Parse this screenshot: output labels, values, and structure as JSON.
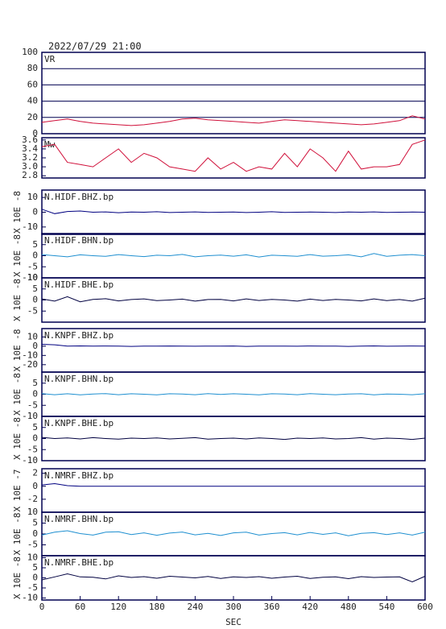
{
  "title": "2022/07/29 21:00",
  "chart_data": [
    {
      "type": "line",
      "title": "VR",
      "grid": true,
      "xlim": [
        0,
        600
      ],
      "ylim": [
        0,
        100
      ],
      "yticks": [
        0,
        20,
        40,
        60,
        80,
        100
      ],
      "x": [
        0,
        20,
        40,
        60,
        80,
        100,
        120,
        140,
        160,
        180,
        200,
        220,
        240,
        260,
        280,
        300,
        320,
        340,
        360,
        380,
        400,
        420,
        440,
        460,
        480,
        500,
        520,
        540,
        560,
        580,
        600
      ],
      "series": [
        {
          "color": "#d0103a",
          "values": [
            14,
            16,
            18,
            15,
            13,
            12,
            11,
            10,
            11,
            13,
            15,
            18,
            19,
            17,
            16,
            15,
            14,
            13,
            15,
            17,
            16,
            15,
            14,
            13,
            12,
            11,
            12,
            14,
            16,
            22,
            18
          ]
        }
      ]
    },
    {
      "type": "line",
      "title": "Mw",
      "grid": false,
      "xlim": [
        0,
        600
      ],
      "ylim": [
        2.75,
        3.65
      ],
      "yticks": [
        2.8,
        {
          "value": 3,
          "label": "3.0"
        },
        3.2,
        3.4,
        3.6
      ],
      "x": [
        0,
        20,
        40,
        60,
        80,
        100,
        120,
        140,
        160,
        180,
        200,
        220,
        240,
        260,
        280,
        300,
        320,
        340,
        360,
        380,
        400,
        420,
        440,
        460,
        480,
        500,
        520,
        540,
        560,
        580,
        600
      ],
      "series": [
        {
          "color": "#d0103a",
          "values": [
            3.45,
            3.5,
            3.1,
            3.05,
            3.0,
            3.2,
            3.4,
            3.1,
            3.3,
            3.2,
            3.0,
            2.95,
            2.9,
            3.2,
            2.95,
            3.1,
            2.9,
            3.0,
            2.95,
            3.3,
            3.0,
            3.4,
            3.2,
            2.9,
            3.35,
            2.95,
            3.0,
            3.0,
            3.05,
            3.5,
            3.6
          ]
        }
      ]
    },
    {
      "type": "line",
      "title": "N.HIDF.BHZ.bp",
      "ylabel": "X 10E -8",
      "grid": false,
      "xlim": [
        0,
        600
      ],
      "ylim": [
        -15,
        15
      ],
      "yticks": [
        -10,
        0,
        10
      ],
      "x": [
        0,
        20,
        40,
        60,
        80,
        100,
        120,
        140,
        160,
        180,
        200,
        220,
        240,
        260,
        280,
        300,
        320,
        340,
        360,
        380,
        400,
        420,
        440,
        460,
        480,
        500,
        520,
        540,
        560,
        580,
        600
      ],
      "series": [
        {
          "color": "#000080",
          "values": [
            2,
            -1,
            0.5,
            0.8,
            0,
            0.2,
            -0.3,
            0.1,
            0,
            0.3,
            -0.2,
            0,
            0.2,
            -0.1,
            0,
            0.1,
            -0.2,
            0,
            0.3,
            -0.1,
            0,
            0.1,
            0,
            -0.2,
            0.1,
            0,
            0.2,
            -0.1,
            0,
            0.1,
            0
          ]
        }
      ]
    },
    {
      "type": "line",
      "title": "N.HIDF.BHN.bp",
      "ylabel": "X 10E -8",
      "grid": false,
      "xlim": [
        0,
        600
      ],
      "ylim": [
        -10,
        10
      ],
      "yticks": [
        -10,
        -5,
        0,
        5
      ],
      "x": [
        0,
        20,
        40,
        60,
        80,
        100,
        120,
        140,
        160,
        180,
        200,
        220,
        240,
        260,
        280,
        300,
        320,
        340,
        360,
        380,
        400,
        420,
        440,
        460,
        480,
        500,
        520,
        540,
        560,
        580,
        600
      ],
      "series": [
        {
          "color": "#1e8fd0",
          "values": [
            0.5,
            0,
            -0.5,
            0.4,
            0,
            -0.3,
            0.5,
            0,
            -0.4,
            0.2,
            0,
            0.6,
            -0.5,
            0,
            0.3,
            -0.2,
            0.4,
            -0.6,
            0.2,
            0,
            -0.3,
            0.5,
            -0.2,
            0,
            0.4,
            -0.5,
            1,
            -0.3,
            0.2,
            0.5,
            0
          ]
        }
      ]
    },
    {
      "type": "line",
      "title": "N.HIDF.BHE.bp",
      "ylabel": "X 10E -8",
      "grid": false,
      "xlim": [
        0,
        600
      ],
      "ylim": [
        -10,
        10
      ],
      "yticks": [
        -5,
        0,
        5,
        10
      ],
      "x": [
        0,
        20,
        40,
        60,
        80,
        100,
        120,
        140,
        160,
        180,
        200,
        220,
        240,
        260,
        280,
        300,
        320,
        340,
        360,
        380,
        400,
        420,
        440,
        460,
        480,
        500,
        520,
        540,
        560,
        580,
        600
      ],
      "series": [
        {
          "color": "#000040",
          "values": [
            0.5,
            -0.5,
            1.5,
            -0.8,
            0.3,
            0.6,
            -0.4,
            0.2,
            0.5,
            -0.3,
            0,
            0.4,
            -0.5,
            0.2,
            0.3,
            -0.4,
            0.5,
            -0.2,
            0.3,
            0,
            -0.5,
            0.4,
            -0.2,
            0.3,
            0,
            -0.4,
            0.5,
            -0.3,
            0.2,
            -0.5,
            0.8
          ]
        }
      ]
    },
    {
      "type": "line",
      "title": "N.KNPF.BHZ.bp",
      "ylabel": "X 10E -8",
      "grid": false,
      "xlim": [
        0,
        600
      ],
      "ylim": [
        -28,
        19
      ],
      "yticks": [
        -20,
        -10,
        0,
        10
      ],
      "x": [
        0,
        20,
        40,
        60,
        80,
        100,
        120,
        140,
        160,
        180,
        200,
        220,
        240,
        260,
        280,
        300,
        320,
        340,
        360,
        380,
        400,
        420,
        440,
        460,
        480,
        500,
        520,
        540,
        560,
        580,
        600
      ],
      "series": [
        {
          "color": "#000080",
          "values": [
            2,
            1.5,
            0,
            0.3,
            0,
            0.2,
            0,
            -0.2,
            0.1,
            0,
            0.2,
            0,
            -0.1,
            0.1,
            0,
            0.2,
            -0.2,
            0,
            0.1,
            0,
            -0.1,
            0.2,
            0,
            0.1,
            -0.2,
            0,
            0.3,
            -0.1,
            0,
            0.2,
            0
          ]
        }
      ]
    },
    {
      "type": "line",
      "title": "N.KNPF.BHN.bp",
      "ylabel": "X 10E -8",
      "grid": false,
      "xlim": [
        0,
        600
      ],
      "ylim": [
        -10,
        10
      ],
      "yticks": [
        -10,
        -5,
        0,
        5
      ],
      "x": [
        0,
        20,
        40,
        60,
        80,
        100,
        120,
        140,
        160,
        180,
        200,
        220,
        240,
        260,
        280,
        300,
        320,
        340,
        360,
        380,
        400,
        420,
        440,
        460,
        480,
        500,
        520,
        540,
        560,
        580,
        600
      ],
      "series": [
        {
          "color": "#1e8fd0",
          "values": [
            0.3,
            -0.2,
            0.2,
            -0.3,
            0.1,
            0.3,
            -0.2,
            0.2,
            0,
            -0.3,
            0.2,
            0.1,
            -0.2,
            0.3,
            -0.1,
            0.2,
            0,
            -0.3,
            0.2,
            0.1,
            -0.2,
            0.3,
            0,
            -0.2,
            0.1,
            0.2,
            -0.3,
            0.1,
            0,
            -0.2,
            0.2
          ]
        }
      ]
    },
    {
      "type": "line",
      "title": "N.KNPF.BHE.bp",
      "ylabel": "X 10E -8",
      "grid": false,
      "xlim": [
        0,
        600
      ],
      "ylim": [
        -10,
        10
      ],
      "yticks": [
        -10,
        -5,
        0,
        5
      ],
      "x": [
        0,
        20,
        40,
        60,
        80,
        100,
        120,
        140,
        160,
        180,
        200,
        220,
        240,
        260,
        280,
        300,
        320,
        340,
        360,
        380,
        400,
        420,
        440,
        460,
        480,
        500,
        520,
        540,
        560,
        580,
        600
      ],
      "series": [
        {
          "color": "#000040",
          "values": [
            0.5,
            0,
            0.3,
            -0.2,
            0.4,
            0,
            -0.3,
            0.2,
            0,
            0.3,
            -0.2,
            0.1,
            0.4,
            -0.3,
            0,
            0.2,
            -0.2,
            0.3,
            0,
            -0.4,
            0.2,
            0,
            0.3,
            -0.2,
            0,
            0.4,
            -0.3,
            0.2,
            0,
            -0.4,
            0.2
          ]
        }
      ]
    },
    {
      "type": "line",
      "title": "N.NMRF.BHZ.bp",
      "ylabel": "X 10E -7",
      "grid": false,
      "xlim": [
        0,
        600
      ],
      "ylim": [
        -4,
        2.7
      ],
      "yticks": [
        -2,
        0,
        2
      ],
      "x": [
        0,
        20,
        40,
        60,
        80,
        100,
        120,
        140,
        160,
        180,
        200,
        220,
        240,
        260,
        280,
        300,
        320,
        340,
        360,
        380,
        400,
        420,
        440,
        460,
        480,
        500,
        520,
        540,
        560,
        580,
        600
      ],
      "series": [
        {
          "color": "#000080",
          "values": [
            0.2,
            0.4,
            0.1,
            0,
            0,
            0,
            0,
            0,
            0,
            0,
            0,
            0,
            0,
            0,
            0,
            0,
            0,
            0,
            0,
            0,
            0,
            0,
            0,
            0,
            0,
            0,
            0,
            0,
            0,
            0,
            0
          ]
        }
      ]
    },
    {
      "type": "line",
      "title": "N.NMRF.BHN.bp",
      "ylabel": "X 10E -8",
      "grid": false,
      "xlim": [
        0,
        600
      ],
      "ylim": [
        -10,
        10
      ],
      "yticks": [
        -5,
        0,
        5,
        10
      ],
      "x": [
        0,
        20,
        40,
        60,
        80,
        100,
        120,
        140,
        160,
        180,
        200,
        220,
        240,
        260,
        280,
        300,
        320,
        340,
        360,
        380,
        400,
        420,
        440,
        460,
        480,
        500,
        520,
        540,
        560,
        580,
        600
      ],
      "series": [
        {
          "color": "#1e8fd0",
          "values": [
            -0.5,
            0.8,
            1.5,
            0.2,
            -0.5,
            0.8,
            1,
            -0.3,
            0.5,
            -0.6,
            0.4,
            0.9,
            -0.4,
            0.3,
            -0.7,
            0.5,
            0.8,
            -0.5,
            0.2,
            0.6,
            -0.4,
            0.7,
            -0.2,
            0.5,
            -0.8,
            0.3,
            0.6,
            -0.3,
            0.5,
            -0.5,
            0.8
          ]
        }
      ]
    },
    {
      "type": "line",
      "title": "N.NMRF.BHE.bp",
      "ylabel": "X 10E -8",
      "xlabel": "SEC",
      "grid": false,
      "xlim": [
        0,
        600
      ],
      "ylim": [
        -11,
        11
      ],
      "yticks": [
        -10,
        -5,
        0,
        5,
        10
      ],
      "xticks": [
        0,
        60,
        120,
        180,
        240,
        300,
        360,
        420,
        480,
        540,
        600
      ],
      "x": [
        0,
        20,
        40,
        60,
        80,
        100,
        120,
        140,
        160,
        180,
        200,
        220,
        240,
        260,
        280,
        300,
        320,
        340,
        360,
        380,
        400,
        420,
        440,
        460,
        480,
        500,
        520,
        540,
        560,
        580,
        600
      ],
      "series": [
        {
          "color": "#000040",
          "values": [
            -1,
            0.5,
            2,
            0.5,
            0.3,
            -0.5,
            1,
            0.2,
            0.6,
            -0.2,
            0.8,
            0.4,
            0,
            0.7,
            -0.3,
            0.5,
            0.2,
            0.6,
            -0.2,
            0.4,
            0.8,
            -0.3,
            0.3,
            0.5,
            -0.4,
            0.6,
            0.2,
            0.4,
            0.5,
            -2,
            0.8
          ]
        }
      ]
    }
  ]
}
